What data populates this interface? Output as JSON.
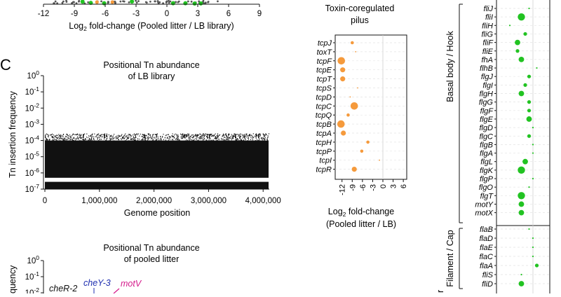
{
  "panel_c_label": "C",
  "top_axis": {
    "ticks": [
      "-12",
      "-9",
      "-6",
      "-3",
      "0",
      "3",
      "6",
      "9"
    ],
    "xlabel_prefix": "Log",
    "xlabel_sub": "2",
    "xlabel_suffix": " fold-change (Pooled litter / LB library)"
  },
  "lb_plot": {
    "title_line1": "Positional Tn abundance",
    "title_line2": "of LB library",
    "ylabel": "Tn insertion frequency",
    "xlabel": "Genome position",
    "xticks": [
      "0",
      "1,000,000",
      "2,000,000",
      "3,000,000",
      "4,000,000"
    ]
  },
  "litter_plot": {
    "title_line1": "Positional Tn abundance",
    "title_line2": "of pooled litter",
    "ylabel_partial": "quency",
    "labels": [
      {
        "text": "cheR-2",
        "color": "#111111"
      },
      {
        "text": "cheY-3",
        "color": "#1f2fb0"
      },
      {
        "text": "motV",
        "color": "#d4188a"
      }
    ]
  },
  "toxin_plot": {
    "title_line1": "Toxin-coregulated",
    "title_line2": "pilus",
    "xticks": [
      "-12",
      "-9",
      "-6",
      "-3",
      "0",
      "3",
      "6"
    ],
    "xlabel_prefix": "Log",
    "xlabel_sub": "2",
    "xlabel_suffix": " fold-change",
    "xlabel_line2": "(Pooled litter / LB)"
  },
  "flagella_plot": {
    "group_basal": "Basal body / Hook",
    "group_filament": "Filament / Cap",
    "group_cut": "r"
  },
  "colors": {
    "orange": "#f59a3c",
    "green": "#22c322",
    "gray": "#9a9a9a",
    "magenta": "#d4188a",
    "blue": "#1f2fb0"
  },
  "chart_data": [
    {
      "type": "scatter",
      "panel": "C (top)",
      "title": "Positional Tn abundance of LB library",
      "xlabel": "Genome position",
      "ylabel": "Tn insertion frequency",
      "xlim": [
        0,
        4100000
      ],
      "ylim": [
        1e-07,
        1
      ],
      "log_y": true,
      "xticks": [
        0,
        1000000,
        2000000,
        3000000,
        4000000
      ],
      "yticks": [
        "10^0",
        "10^-1",
        "10^-2",
        "10^-3",
        "10^-4",
        "10^-5",
        "10^-6",
        "10^-7"
      ],
      "note": "dense band of insertions between 10^-6 and 10^-4 across the genome"
    },
    {
      "type": "scatter",
      "panel": "Toxin-coregulated pilus",
      "title": "Toxin-coregulated pilus",
      "xlabel": "Log2 fold-change (Pooled litter / LB)",
      "xlim": [
        -14,
        7
      ],
      "xticks": [
        -12,
        -9,
        -6,
        -3,
        0,
        3,
        6
      ],
      "genes": [
        "tcpJ",
        "toxT",
        "tcpF",
        "tcpE",
        "tcpT",
        "tcpS",
        "tcpD",
        "tcpC",
        "tcpQ",
        "tcpB",
        "tcpA",
        "tcpH",
        "tcpP",
        "tcpI",
        "tcpR"
      ],
      "values": [
        -9,
        -8,
        -12.2,
        -11.8,
        -11.8,
        -7.4,
        -9.6,
        -8.4,
        -10.2,
        -12.3,
        -11.6,
        -4.4,
        -6.2,
        -1,
        -8.4
      ],
      "marker_size": [
        2,
        1,
        4,
        3,
        3,
        1,
        1,
        4,
        2,
        4,
        3,
        2,
        2,
        1,
        3
      ],
      "color": "#f59a3c"
    },
    {
      "type": "scatter",
      "panel": "Flagella",
      "xlabel": "",
      "genes": [
        "fliJ",
        "fliI",
        "fliH",
        "fliG",
        "fliF",
        "fliE",
        "fhA",
        "flhB",
        "flgJ",
        "flgI",
        "flgH",
        "flgG",
        "flgF",
        "flgE",
        "flgD",
        "flgC",
        "flgB",
        "flgA",
        "flgL",
        "flgK",
        "flgP",
        "flgO",
        "flgT",
        "motY",
        "motX",
        "flaB",
        "flaD",
        "flaE",
        "flaC",
        "flaA",
        "fliS",
        "fliD"
      ],
      "values": [
        -1,
        -3,
        -6,
        -2,
        -4,
        -4,
        -3,
        1,
        -1,
        -2,
        -3,
        -1,
        -1,
        -1,
        0,
        -1,
        0,
        0,
        -2,
        -3,
        0,
        -1,
        -3,
        -3,
        -3,
        -1,
        0,
        0,
        0,
        1,
        -3,
        -3
      ],
      "marker_size": [
        1,
        4,
        1,
        2,
        3,
        2,
        3,
        1,
        2,
        2,
        3,
        2,
        2,
        3,
        1,
        2,
        1,
        1,
        3,
        4,
        1,
        1,
        4,
        3,
        3,
        1,
        1,
        1,
        1,
        2,
        1,
        3
      ],
      "groups": [
        {
          "name": "Basal body / Hook",
          "genes": 25
        },
        {
          "name": "Filament / Cap",
          "genes": 7
        }
      ],
      "color": "#22c322"
    }
  ]
}
